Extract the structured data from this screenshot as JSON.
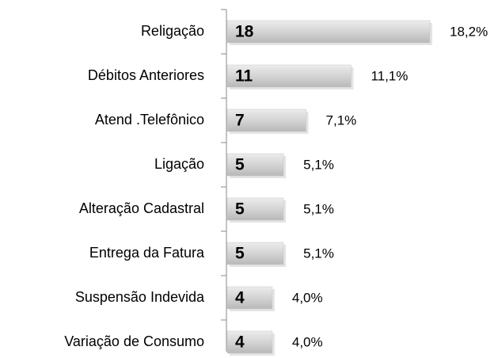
{
  "chart_data": {
    "type": "bar",
    "orientation": "horizontal",
    "categories": [
      "Religação",
      "Débitos Anteriores",
      "Atend .Telefônico",
      "Ligação",
      "Alteração Cadastral",
      "Entrega da Fatura",
      "Suspensão Indevida",
      "Variação de Consumo"
    ],
    "values": [
      18,
      11,
      7,
      5,
      5,
      5,
      4,
      4
    ],
    "percent_labels": [
      "18,2%",
      "11,1%",
      "7,1%",
      "5,1%",
      "5,1%",
      "5,1%",
      "4,0%",
      "4,0%"
    ],
    "color": "#c8c8c8"
  }
}
